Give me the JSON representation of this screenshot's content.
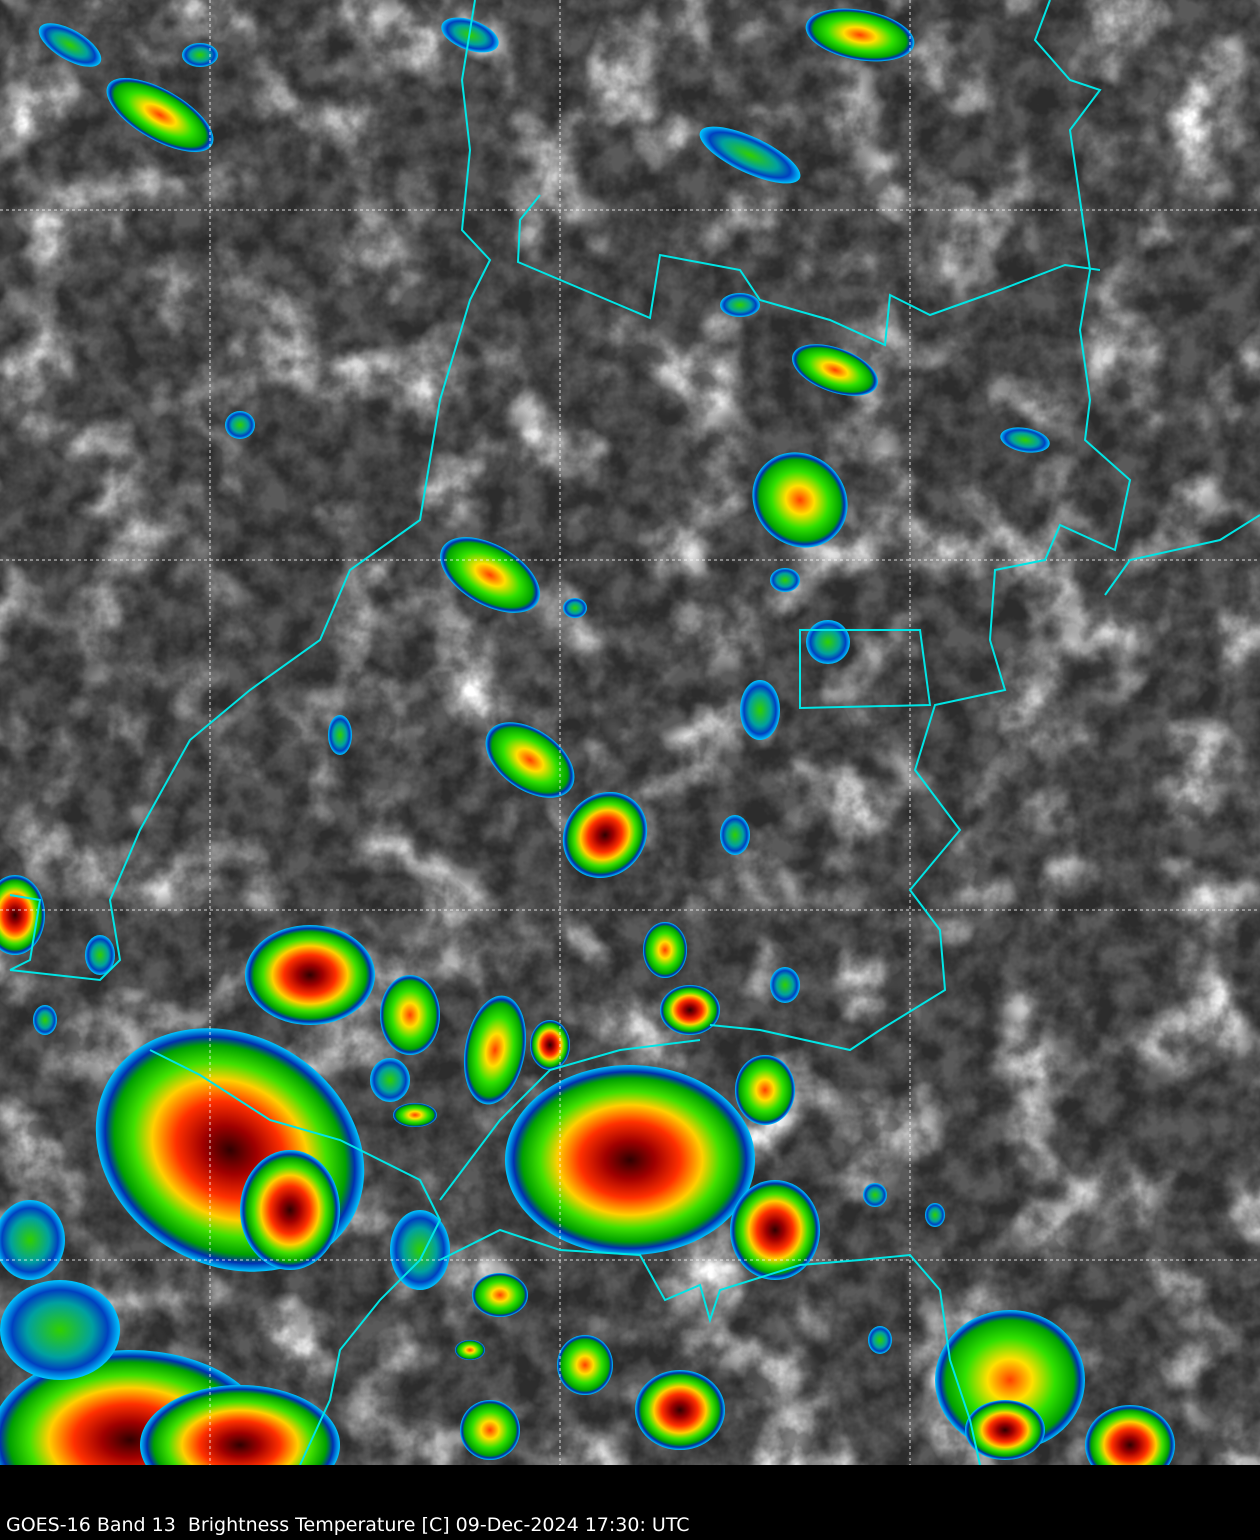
{
  "caption": "GOES-16 Band 13  Brightness Temperature [C] 09-Dec-2024 17:30: UTC",
  "colors": {
    "background_gray": "#5a5a5a",
    "border": "#00e5e5",
    "grid": "#ffffff",
    "cold_core": "#8b0000",
    "red": "#ff2000",
    "yellow": "#ffff00",
    "green": "#00e000",
    "blue": "#0030c0",
    "cyan": "#00c0ff"
  },
  "map": {
    "grid": true,
    "grid_style": "dashed",
    "borders": true
  }
}
